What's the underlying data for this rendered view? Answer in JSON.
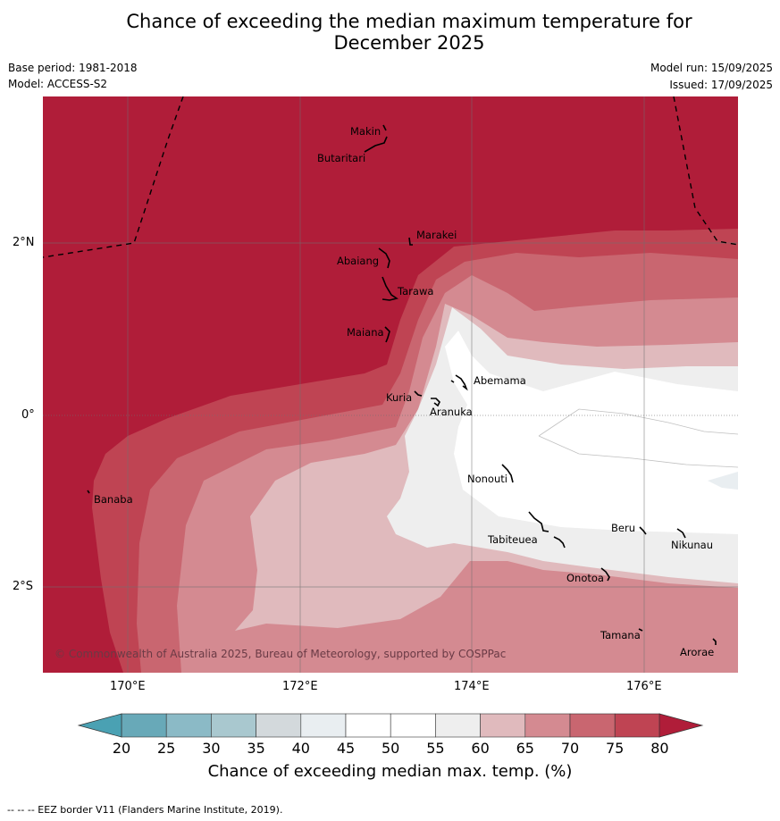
{
  "title_line1": "Chance of exceeding the median maximum temperature for",
  "title_line2": "December 2025",
  "meta": {
    "base_period": "Base period: 1981-2018",
    "model": "Model: ACCESS-S2",
    "model_run": "Model run: 15/09/2025",
    "issued": "Issued: 17/09/2025"
  },
  "map": {
    "lat_labels": [
      "2°N",
      "0°",
      "2°S"
    ],
    "lon_labels": [
      "170°E",
      "172°E",
      "174°E",
      "176°E"
    ],
    "copyright": "© Commonwealth of Australia 2025, Bureau of Meteorology, supported by COSPPac",
    "islands": [
      {
        "name": "Makin"
      },
      {
        "name": "Butaritari"
      },
      {
        "name": "Marakei"
      },
      {
        "name": "Abaiang"
      },
      {
        "name": "Tarawa"
      },
      {
        "name": "Maiana"
      },
      {
        "name": "Abemama"
      },
      {
        "name": "Kuria"
      },
      {
        "name": "Aranuka"
      },
      {
        "name": "Nonouti"
      },
      {
        "name": "Banaba"
      },
      {
        "name": "Beru"
      },
      {
        "name": "Tabiteuea"
      },
      {
        "name": "Nikunau"
      },
      {
        "name": "Onotoa"
      },
      {
        "name": "Tamana"
      },
      {
        "name": "Arorae"
      }
    ]
  },
  "colorbar": {
    "ticks": [
      "20",
      "25",
      "30",
      "35",
      "40",
      "45",
      "50",
      "55",
      "60",
      "65",
      "70",
      "75",
      "80"
    ],
    "colors": [
      "#68a9b8",
      "#8bbac6",
      "#a9c8cf",
      "#d3d9dc",
      "#e9eef1",
      "#ffffff",
      "#ffffff",
      "#eeeeee",
      "#e0babd",
      "#d48a91",
      "#c96670",
      "#bf4453"
    ],
    "under_color": "#4aa1b3",
    "over_color": "#b01d39",
    "label": "Chance of exceeding median max. temp. (%)"
  },
  "footer": "--  --  -- EEZ border V11 (Flanders Marine Institute, 2019)."
}
